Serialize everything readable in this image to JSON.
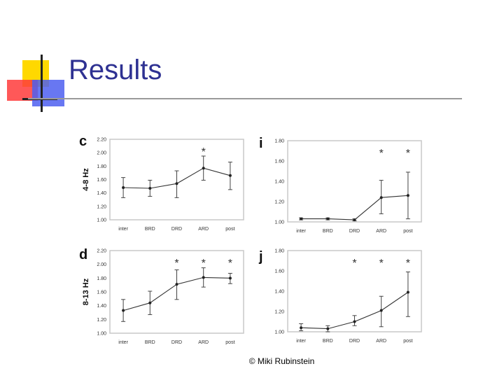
{
  "slide": {
    "title": "Results",
    "footer": "© Miki Rubinstein"
  },
  "chart_data": [
    {
      "panel": "c",
      "type": "line",
      "ylabel": "4-8 Hz",
      "categories": [
        "inter",
        "BRD",
        "DRD",
        "ARD",
        "post"
      ],
      "values": [
        1.48,
        1.47,
        1.54,
        1.77,
        1.66
      ],
      "err_low": [
        1.33,
        1.35,
        1.33,
        1.59,
        1.45
      ],
      "err_high": [
        1.63,
        1.59,
        1.73,
        1.95,
        1.86
      ],
      "significant": [
        false,
        false,
        false,
        true,
        false
      ],
      "ylim": [
        1.0,
        2.2
      ],
      "yticks": [
        "1.00",
        "1.20",
        "1.40",
        "1.60",
        "1.80",
        "2.00",
        "2.20"
      ]
    },
    {
      "panel": "i",
      "type": "line",
      "ylabel": "",
      "categories": [
        "inter",
        "BRD",
        "DRD",
        "ARD",
        "post"
      ],
      "values": [
        1.03,
        1.03,
        1.02,
        1.24,
        1.26
      ],
      "err_low": [
        1.02,
        1.02,
        1.01,
        1.08,
        1.03
      ],
      "err_high": [
        1.04,
        1.04,
        1.03,
        1.41,
        1.49
      ],
      "significant": [
        false,
        false,
        false,
        true,
        true
      ],
      "ylim": [
        1.0,
        1.8
      ],
      "yticks": [
        "1.00",
        "1.20",
        "1.40",
        "1.60",
        "1.80"
      ]
    },
    {
      "panel": "d",
      "type": "line",
      "ylabel": "8-13 Hz",
      "categories": [
        "inter",
        "BRD",
        "DRD",
        "ARD",
        "post"
      ],
      "values": [
        1.33,
        1.44,
        1.71,
        1.81,
        1.8
      ],
      "err_low": [
        1.17,
        1.27,
        1.49,
        1.67,
        1.72
      ],
      "err_high": [
        1.49,
        1.61,
        1.92,
        1.95,
        1.87
      ],
      "significant": [
        false,
        false,
        true,
        true,
        true
      ],
      "ylim": [
        1.0,
        2.2
      ],
      "yticks": [
        "1.00",
        "1.20",
        "1.40",
        "1.60",
        "1.80",
        "2.00",
        "2.20"
      ]
    },
    {
      "panel": "j",
      "type": "line",
      "ylabel": "",
      "categories": [
        "inter",
        "BRD",
        "DRD",
        "ARD",
        "post"
      ],
      "values": [
        1.04,
        1.03,
        1.1,
        1.21,
        1.39
      ],
      "err_low": [
        1.01,
        1.0,
        1.06,
        1.05,
        1.15
      ],
      "err_high": [
        1.08,
        1.06,
        1.16,
        1.35,
        1.59
      ],
      "significant": [
        false,
        false,
        true,
        true,
        true
      ],
      "ylim": [
        1.0,
        1.8
      ],
      "yticks": [
        "1.00",
        "1.20",
        "1.40",
        "1.60",
        "1.80"
      ]
    }
  ]
}
